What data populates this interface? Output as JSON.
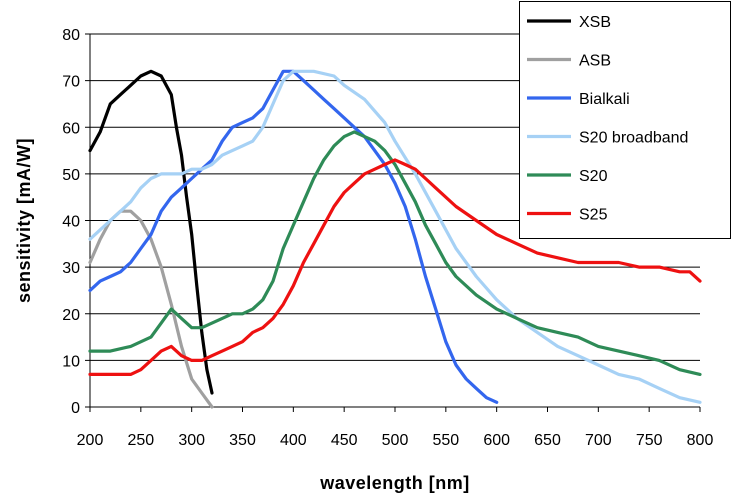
{
  "chart_data": {
    "type": "line",
    "title": "",
    "xlabel": "wavelength [nm]",
    "ylabel": "sensitivity [mA/W]",
    "xlim": [
      200,
      800
    ],
    "ylim": [
      0,
      80
    ],
    "x_ticks": [
      200,
      250,
      300,
      350,
      400,
      450,
      500,
      550,
      600,
      650,
      700,
      750,
      800
    ],
    "y_ticks": [
      0,
      10,
      20,
      30,
      40,
      50,
      60,
      70,
      80
    ],
    "grid": "horizontal",
    "legend_position": "top-right",
    "series": [
      {
        "name": "XSB",
        "color": "#000000",
        "points": [
          [
            200,
            55
          ],
          [
            210,
            59
          ],
          [
            220,
            65
          ],
          [
            230,
            67
          ],
          [
            240,
            69
          ],
          [
            250,
            71
          ],
          [
            260,
            72
          ],
          [
            270,
            71
          ],
          [
            280,
            67
          ],
          [
            285,
            60
          ],
          [
            290,
            54
          ],
          [
            295,
            45
          ],
          [
            300,
            37
          ],
          [
            305,
            26
          ],
          [
            310,
            16
          ],
          [
            315,
            8
          ],
          [
            320,
            3
          ]
        ]
      },
      {
        "name": "ASB",
        "color": "#a0a0a0",
        "points": [
          [
            200,
            31
          ],
          [
            210,
            36
          ],
          [
            220,
            40
          ],
          [
            230,
            42
          ],
          [
            240,
            42
          ],
          [
            250,
            40
          ],
          [
            260,
            36
          ],
          [
            270,
            30
          ],
          [
            280,
            22
          ],
          [
            290,
            13
          ],
          [
            300,
            6
          ],
          [
            310,
            3
          ],
          [
            320,
            0
          ]
        ]
      },
      {
        "name": "Bialkali",
        "color": "#3366ee",
        "points": [
          [
            200,
            25
          ],
          [
            210,
            27
          ],
          [
            220,
            28
          ],
          [
            230,
            29
          ],
          [
            240,
            31
          ],
          [
            250,
            34
          ],
          [
            260,
            37
          ],
          [
            270,
            42
          ],
          [
            280,
            45
          ],
          [
            290,
            47
          ],
          [
            300,
            49
          ],
          [
            310,
            51
          ],
          [
            320,
            53
          ],
          [
            330,
            57
          ],
          [
            340,
            60
          ],
          [
            350,
            61
          ],
          [
            360,
            62
          ],
          [
            370,
            64
          ],
          [
            380,
            68
          ],
          [
            390,
            72
          ],
          [
            400,
            72
          ],
          [
            410,
            70
          ],
          [
            420,
            68
          ],
          [
            430,
            66
          ],
          [
            440,
            64
          ],
          [
            450,
            62
          ],
          [
            460,
            60
          ],
          [
            470,
            58
          ],
          [
            480,
            55
          ],
          [
            490,
            52
          ],
          [
            500,
            48
          ],
          [
            510,
            43
          ],
          [
            520,
            36
          ],
          [
            530,
            28
          ],
          [
            540,
            21
          ],
          [
            550,
            14
          ],
          [
            560,
            9
          ],
          [
            570,
            6
          ],
          [
            580,
            4
          ],
          [
            590,
            2
          ],
          [
            600,
            1
          ]
        ]
      },
      {
        "name": "S20 broadband",
        "color": "#a6d1f5",
        "points": [
          [
            200,
            36
          ],
          [
            210,
            38
          ],
          [
            220,
            40
          ],
          [
            230,
            42
          ],
          [
            240,
            44
          ],
          [
            250,
            47
          ],
          [
            260,
            49
          ],
          [
            270,
            50
          ],
          [
            280,
            50
          ],
          [
            290,
            50
          ],
          [
            300,
            51
          ],
          [
            310,
            51
          ],
          [
            320,
            52
          ],
          [
            330,
            54
          ],
          [
            340,
            55
          ],
          [
            350,
            56
          ],
          [
            360,
            57
          ],
          [
            370,
            60
          ],
          [
            380,
            65
          ],
          [
            390,
            70
          ],
          [
            400,
            72
          ],
          [
            420,
            72
          ],
          [
            440,
            71
          ],
          [
            450,
            69
          ],
          [
            470,
            66
          ],
          [
            490,
            61
          ],
          [
            500,
            57
          ],
          [
            520,
            50
          ],
          [
            540,
            42
          ],
          [
            560,
            34
          ],
          [
            580,
            28
          ],
          [
            600,
            23
          ],
          [
            620,
            19
          ],
          [
            640,
            16
          ],
          [
            660,
            13
          ],
          [
            680,
            11
          ],
          [
            700,
            9
          ],
          [
            720,
            7
          ],
          [
            740,
            6
          ],
          [
            760,
            4
          ],
          [
            780,
            2
          ],
          [
            800,
            1
          ]
        ]
      },
      {
        "name": "S20",
        "color": "#2e8b57",
        "points": [
          [
            200,
            12
          ],
          [
            220,
            12
          ],
          [
            240,
            13
          ],
          [
            260,
            15
          ],
          [
            270,
            18
          ],
          [
            280,
            21
          ],
          [
            290,
            19
          ],
          [
            300,
            17
          ],
          [
            310,
            17
          ],
          [
            320,
            18
          ],
          [
            330,
            19
          ],
          [
            340,
            20
          ],
          [
            350,
            20
          ],
          [
            360,
            21
          ],
          [
            370,
            23
          ],
          [
            380,
            27
          ],
          [
            390,
            34
          ],
          [
            400,
            39
          ],
          [
            410,
            44
          ],
          [
            420,
            49
          ],
          [
            430,
            53
          ],
          [
            440,
            56
          ],
          [
            450,
            58
          ],
          [
            460,
            59
          ],
          [
            470,
            58
          ],
          [
            480,
            57
          ],
          [
            490,
            55
          ],
          [
            500,
            52
          ],
          [
            510,
            48
          ],
          [
            520,
            44
          ],
          [
            530,
            39
          ],
          [
            540,
            35
          ],
          [
            550,
            31
          ],
          [
            560,
            28
          ],
          [
            580,
            24
          ],
          [
            600,
            21
          ],
          [
            620,
            19
          ],
          [
            640,
            17
          ],
          [
            660,
            16
          ],
          [
            680,
            15
          ],
          [
            700,
            13
          ],
          [
            720,
            12
          ],
          [
            740,
            11
          ],
          [
            760,
            10
          ],
          [
            780,
            8
          ],
          [
            800,
            7
          ]
        ]
      },
      {
        "name": "S25",
        "color": "#ee1111",
        "points": [
          [
            200,
            7
          ],
          [
            220,
            7
          ],
          [
            240,
            7
          ],
          [
            250,
            8
          ],
          [
            260,
            10
          ],
          [
            270,
            12
          ],
          [
            280,
            13
          ],
          [
            290,
            11
          ],
          [
            300,
            10
          ],
          [
            310,
            10
          ],
          [
            320,
            11
          ],
          [
            330,
            12
          ],
          [
            340,
            13
          ],
          [
            350,
            14
          ],
          [
            360,
            16
          ],
          [
            370,
            17
          ],
          [
            380,
            19
          ],
          [
            390,
            22
          ],
          [
            400,
            26
          ],
          [
            410,
            31
          ],
          [
            420,
            35
          ],
          [
            430,
            39
          ],
          [
            440,
            43
          ],
          [
            450,
            46
          ],
          [
            460,
            48
          ],
          [
            470,
            50
          ],
          [
            480,
            51
          ],
          [
            490,
            52
          ],
          [
            500,
            53
          ],
          [
            510,
            52
          ],
          [
            520,
            51
          ],
          [
            530,
            49
          ],
          [
            540,
            47
          ],
          [
            560,
            43
          ],
          [
            580,
            40
          ],
          [
            600,
            37
          ],
          [
            620,
            35
          ],
          [
            640,
            33
          ],
          [
            660,
            32
          ],
          [
            680,
            31
          ],
          [
            700,
            31
          ],
          [
            720,
            31
          ],
          [
            740,
            30
          ],
          [
            760,
            30
          ],
          [
            780,
            29
          ],
          [
            790,
            29
          ],
          [
            800,
            27
          ]
        ]
      }
    ]
  }
}
